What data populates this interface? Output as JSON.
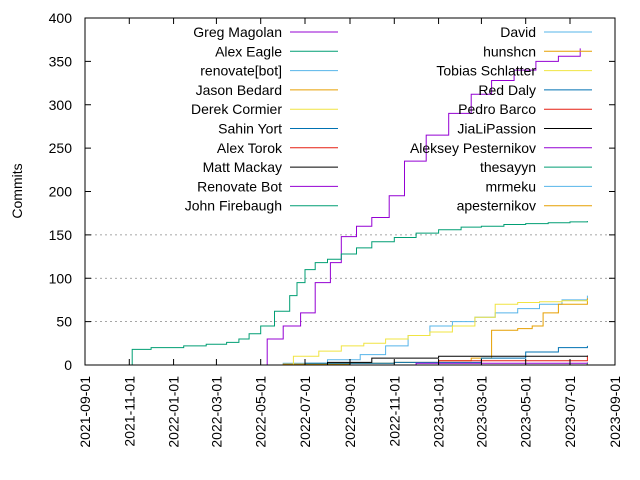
{
  "chart_data": {
    "type": "line",
    "title": "",
    "xlabel": "",
    "ylabel": "Commits",
    "x_axis": {
      "type": "date",
      "range": [
        "2021-09-01",
        "2023-09-01"
      ],
      "ticks": [
        "2021-09-01",
        "2021-11-01",
        "2022-01-01",
        "2022-03-01",
        "2022-05-01",
        "2022-07-01",
        "2022-09-01",
        "2022-11-01",
        "2023-01-01",
        "2023-03-01",
        "2023-05-01",
        "2023-07-01",
        "2023-09-01"
      ]
    },
    "y_axis": {
      "range": [
        0,
        400
      ],
      "ticks": [
        "0",
        "50",
        "100",
        "150",
        "200",
        "250",
        "300",
        "350",
        "400"
      ]
    },
    "grid": "horizontal dotted at 50, 100, 150",
    "legend_placement": "top, two columns",
    "series": [
      {
        "name": "Greg Magolan",
        "color": "#9400d3",
        "x": [
          "2022-04-20",
          "2022-05-10",
          "2022-06-01",
          "2022-06-25",
          "2022-07-15",
          "2022-08-05",
          "2022-08-20",
          "2022-09-10",
          "2022-10-01",
          "2022-10-25",
          "2022-11-15",
          "2022-12-15",
          "2023-01-15",
          "2023-02-15",
          "2023-03-15",
          "2023-04-15",
          "2023-05-15",
          "2023-06-15",
          "2023-07-15"
        ],
        "y": [
          0,
          30,
          45,
          60,
          95,
          118,
          148,
          160,
          170,
          195,
          235,
          265,
          290,
          312,
          328,
          340,
          350,
          356,
          365
        ]
      },
      {
        "name": "Alex Eagle",
        "color": "#009e73",
        "x": [
          "2021-10-25",
          "2021-11-05",
          "2021-12-01",
          "2022-01-15",
          "2022-02-15",
          "2022-03-15",
          "2022-04-01",
          "2022-04-15",
          "2022-05-01",
          "2022-05-20",
          "2022-06-10",
          "2022-06-20",
          "2022-07-01",
          "2022-07-15",
          "2022-08-01",
          "2022-08-20",
          "2022-09-10",
          "2022-10-01",
          "2022-11-01",
          "2022-12-01",
          "2023-01-01",
          "2023-02-01",
          "2023-03-01",
          "2023-04-01",
          "2023-05-01",
          "2023-06-01",
          "2023-07-01",
          "2023-07-25"
        ],
        "y": [
          0,
          18,
          20,
          22,
          24,
          26,
          30,
          36,
          45,
          62,
          80,
          95,
          110,
          118,
          122,
          128,
          135,
          142,
          147,
          152,
          156,
          159,
          160,
          162,
          163,
          164,
          165,
          166
        ]
      },
      {
        "name": "renovate[bot]",
        "color": "#56b4e9",
        "x": [
          "2022-03-15",
          "2022-06-01",
          "2022-08-01",
          "2022-09-15",
          "2022-10-20",
          "2022-11-20",
          "2022-12-20",
          "2023-01-20",
          "2023-02-20",
          "2023-03-20",
          "2023-04-20",
          "2023-05-20",
          "2023-06-20",
          "2023-07-25"
        ],
        "y": [
          0,
          2,
          6,
          12,
          22,
          34,
          45,
          50,
          55,
          60,
          65,
          70,
          75,
          80
        ]
      },
      {
        "name": "Jason Bedard",
        "color": "#e69f00",
        "x": [
          "2022-01-01",
          "2022-06-01",
          "2022-09-01",
          "2022-11-01",
          "2023-01-01",
          "2023-02-15",
          "2023-03-15",
          "2023-04-20",
          "2023-05-10",
          "2023-05-25",
          "2023-06-15",
          "2023-07-25"
        ],
        "y": [
          0,
          1,
          2,
          3,
          5,
          8,
          40,
          42,
          45,
          60,
          70,
          77
        ]
      },
      {
        "name": "Derek Cormier",
        "color": "#f0e442",
        "x": [
          "2022-05-20",
          "2022-06-15",
          "2022-07-20",
          "2022-08-20",
          "2022-09-20",
          "2022-10-20",
          "2022-11-20",
          "2022-12-20",
          "2023-01-20",
          "2023-02-20",
          "2023-03-20",
          "2023-04-20",
          "2023-05-20",
          "2023-06-20",
          "2023-07-25"
        ],
        "y": [
          0,
          10,
          16,
          22,
          25,
          30,
          34,
          38,
          45,
          55,
          70,
          72,
          73,
          74,
          75
        ]
      },
      {
        "name": "Sahin Yort",
        "color": "#0072b2",
        "x": [
          "2022-04-01",
          "2022-07-01",
          "2022-11-01",
          "2023-03-01",
          "2023-05-01",
          "2023-06-15",
          "2023-07-25"
        ],
        "y": [
          0,
          2,
          3,
          8,
          15,
          20,
          22
        ]
      },
      {
        "name": "Alex Torok",
        "color": "#e51e10",
        "x": [
          "2022-08-01",
          "2023-01-01",
          "2023-07-25"
        ],
        "y": [
          0,
          5,
          10
        ]
      },
      {
        "name": "Matt Mackay",
        "color": "#000000",
        "x": [
          "2022-05-01",
          "2022-08-01",
          "2022-10-01",
          "2023-01-01",
          "2023-04-01",
          "2023-07-25"
        ],
        "y": [
          0,
          3,
          8,
          10,
          10,
          11
        ]
      },
      {
        "name": "Renovate Bot",
        "color": "#9400d3",
        "x": [
          "2022-05-01",
          "2022-12-01",
          "2023-07-25"
        ],
        "y": [
          0,
          2,
          3
        ]
      },
      {
        "name": "John Firebaugh",
        "color": "#009e73",
        "x": [
          "2022-09-01",
          "2023-07-25"
        ],
        "y": [
          0,
          2
        ]
      },
      {
        "name": "David",
        "color": "#56b4e9",
        "x": [
          "2022-03-01",
          "2023-07-25"
        ],
        "y": [
          0,
          1
        ]
      },
      {
        "name": "hunshcn",
        "color": "#e69f00",
        "x": [
          "2022-10-01",
          "2023-07-25"
        ],
        "y": [
          0,
          1
        ]
      },
      {
        "name": "Tobias Schlatter",
        "color": "#f0e442",
        "x": [
          "2022-06-01",
          "2023-07-25"
        ],
        "y": [
          0,
          1
        ]
      },
      {
        "name": "Red Daly",
        "color": "#0072b2",
        "x": [
          "2022-04-01",
          "2023-07-25"
        ],
        "y": [
          0,
          1
        ]
      },
      {
        "name": "Pedro Barco",
        "color": "#e51e10",
        "x": [
          "2022-08-01",
          "2023-07-25"
        ],
        "y": [
          0,
          1
        ]
      },
      {
        "name": "JiaLiPassion",
        "color": "#000000",
        "x": [
          "2021-11-01",
          "2023-07-25"
        ],
        "y": [
          0,
          1
        ]
      },
      {
        "name": "Aleksey Pesternikov",
        "color": "#9400d3",
        "x": [
          "2023-01-01",
          "2023-07-25"
        ],
        "y": [
          0,
          1
        ]
      },
      {
        "name": "thesayyn",
        "color": "#009e73",
        "x": [
          "2022-01-01",
          "2023-07-25"
        ],
        "y": [
          0,
          1
        ]
      },
      {
        "name": "mrmeku",
        "color": "#56b4e9",
        "x": [
          "2022-06-01",
          "2023-07-25"
        ],
        "y": [
          0,
          1
        ]
      },
      {
        "name": "apesternikov",
        "color": "#e69f00",
        "x": [
          "2023-03-01",
          "2023-07-25"
        ],
        "y": [
          0,
          1
        ]
      }
    ]
  }
}
